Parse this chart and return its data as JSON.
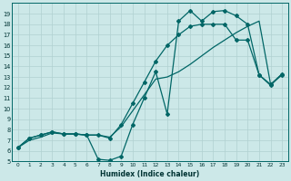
{
  "xlabel": "Humidex (Indice chaleur)",
  "bg_color": "#cce8e8",
  "grid_color": "#b0d0d0",
  "line_color": "#006666",
  "xlim": [
    -0.5,
    23.5
  ],
  "ylim": [
    5,
    20
  ],
  "xticks": [
    0,
    1,
    2,
    3,
    4,
    5,
    6,
    7,
    8,
    9,
    10,
    11,
    12,
    13,
    14,
    15,
    16,
    17,
    18,
    19,
    20,
    21,
    22,
    23
  ],
  "yticks": [
    5,
    6,
    7,
    8,
    9,
    10,
    11,
    12,
    13,
    14,
    15,
    16,
    17,
    18,
    19
  ],
  "s1_y": [
    6.3,
    7.2,
    7.5,
    7.8,
    7.6,
    7.6,
    7.5,
    5.2,
    5.1,
    5.5,
    8.5,
    11.0,
    13.5,
    9.5,
    18.3,
    19.3,
    18.3,
    19.2,
    19.3,
    18.8,
    18.0,
    13.2,
    12.3,
    13.2
  ],
  "s2_y": [
    6.3,
    7.2,
    7.5,
    7.8,
    7.6,
    7.6,
    7.5,
    7.5,
    7.2,
    8.5,
    10.5,
    12.5,
    14.5,
    16.0,
    17.0,
    17.8,
    18.0,
    18.0,
    18.0,
    16.5,
    16.5,
    13.2,
    12.2,
    13.3
  ],
  "s3_y": [
    6.3,
    7.0,
    7.3,
    7.7,
    7.6,
    7.6,
    7.5,
    7.5,
    7.3,
    8.3,
    9.8,
    11.3,
    12.8,
    13.0,
    13.5,
    14.2,
    15.0,
    15.8,
    16.5,
    17.2,
    17.8,
    18.3,
    12.3,
    13.3
  ]
}
